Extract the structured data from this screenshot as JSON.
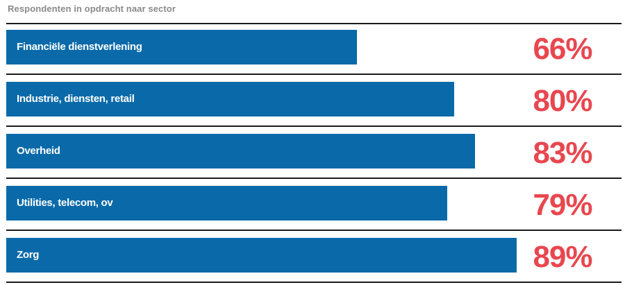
{
  "subtitle": "Respondenten in opdracht naar sector",
  "colors": {
    "bar": "#0a6aa9",
    "value": "#e8474f",
    "subtitle": "#8a8a8a",
    "divider": "#1a1a1a"
  },
  "chart_data": {
    "type": "bar",
    "orientation": "horizontal",
    "title": "Respondenten in opdracht naar sector",
    "categories": [
      "Financiële dienstverlening",
      "Industrie, diensten, retail",
      "Overheid",
      "Utilities, telecom, ov",
      "Zorg"
    ],
    "values": [
      66,
      80,
      83,
      79,
      89
    ],
    "value_labels": [
      "66%",
      "80%",
      "83%",
      "79%",
      "89%"
    ],
    "unit": "%",
    "xlim": [
      0,
      100
    ],
    "grid": false,
    "legend": "none"
  }
}
